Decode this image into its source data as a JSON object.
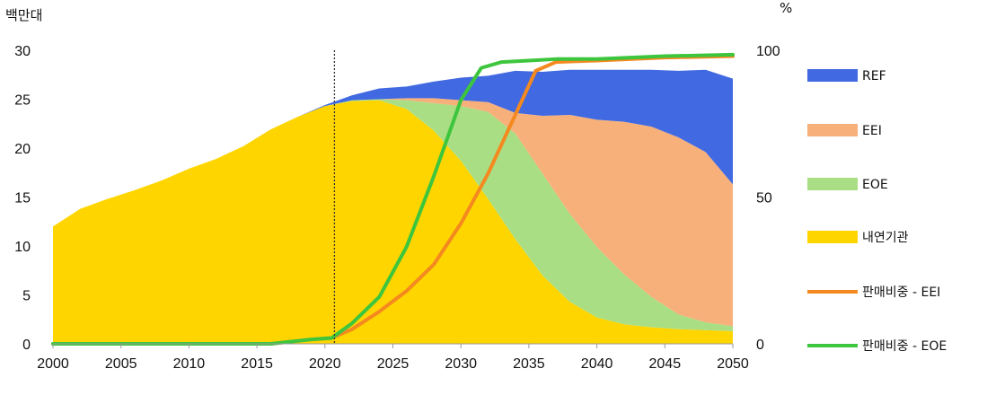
{
  "chart_data": {
    "type": "area",
    "left_unit": "백만대",
    "right_unit": "%",
    "x_ticks": [
      "2000",
      "2005",
      "2010",
      "2015",
      "2020",
      "2025",
      "2030",
      "2035",
      "2040",
      "2045",
      "2050"
    ],
    "y_left_ticks": [
      "0",
      "5",
      "10",
      "15",
      "20",
      "25",
      "30"
    ],
    "y_right_ticks": [
      "0",
      "50",
      "100"
    ],
    "xlim": [
      2000,
      2050
    ],
    "ylim_left": [
      0,
      30
    ],
    "ylim_right": [
      0,
      100
    ],
    "marker_year": 2020.7,
    "x": [
      2000,
      2002,
      2004,
      2006,
      2008,
      2010,
      2012,
      2014,
      2016,
      2018,
      2020,
      2022,
      2024,
      2026,
      2028,
      2030,
      2032,
      2034,
      2036,
      2038,
      2040,
      2042,
      2044,
      2046,
      2048,
      2050
    ],
    "stacked_series": [
      {
        "name": "내연기관",
        "color": "#FFD500",
        "values": [
          12.0,
          13.8,
          14.8,
          15.7,
          16.7,
          17.9,
          18.9,
          20.2,
          21.9,
          23.2,
          24.3,
          24.8,
          24.9,
          24.0,
          21.8,
          18.7,
          14.8,
          10.7,
          7.0,
          4.3,
          2.7,
          2.0,
          1.7,
          1.5,
          1.4,
          1.3
        ]
      },
      {
        "name": "EOE",
        "color": "#A9DE84",
        "values": [
          0,
          0,
          0,
          0,
          0,
          0,
          0,
          0,
          0,
          0,
          0,
          0.1,
          0.1,
          0.9,
          2.8,
          5.6,
          8.9,
          10.8,
          10.4,
          9.0,
          7.2,
          5.1,
          3.1,
          1.5,
          0.8,
          0.5
        ]
      },
      {
        "name": "EEI",
        "color": "#F7B07A",
        "values": [
          0,
          0,
          0,
          0,
          0,
          0,
          0,
          0,
          0,
          0,
          0,
          0,
          0,
          0.2,
          0.5,
          0.6,
          1.0,
          2.1,
          5.9,
          10.1,
          13.0,
          15.6,
          17.4,
          18.1,
          17.4,
          14.5
        ]
      },
      {
        "name": "REF",
        "color": "#4169E1",
        "values": [
          0,
          0,
          0,
          0,
          0,
          0,
          0,
          0,
          0,
          0,
          0.1,
          0.5,
          1.1,
          1.2,
          1.7,
          2.3,
          2.7,
          4.3,
          4.5,
          4.6,
          5.1,
          5.3,
          5.8,
          6.8,
          8.4,
          10.8
        ]
      }
    ],
    "line_series": [
      {
        "name": "판매비중 - EEI",
        "color": "#F4891F",
        "x": [
          2000,
          2016,
          2019,
          2020.5,
          2022,
          2024,
          2026,
          2028,
          2030,
          2032,
          2034,
          2035.5,
          2037,
          2040,
          2045,
          2050
        ],
        "values": [
          0,
          0,
          1.5,
          2,
          5,
          11,
          18,
          27,
          41,
          58,
          78,
          93,
          96,
          96.5,
          97.5,
          98
        ]
      },
      {
        "name": "판매비중 - EOE",
        "color": "#3DC63D",
        "x": [
          2000,
          2016,
          2019,
          2020.5,
          2022,
          2024,
          2026,
          2028,
          2030,
          2031.5,
          2033,
          2035,
          2037,
          2040,
          2045,
          2050
        ],
        "values": [
          0,
          0,
          1.5,
          2,
          7,
          16,
          33,
          57,
          83,
          94,
          96,
          96.5,
          97,
          97,
          98,
          98.5
        ]
      }
    ],
    "legend": [
      "REF",
      "EEI",
      "EOE",
      "내연기관",
      "판매비중 - EEI",
      "판매비중 - EOE"
    ],
    "legend_position": "right",
    "grid": false
  }
}
